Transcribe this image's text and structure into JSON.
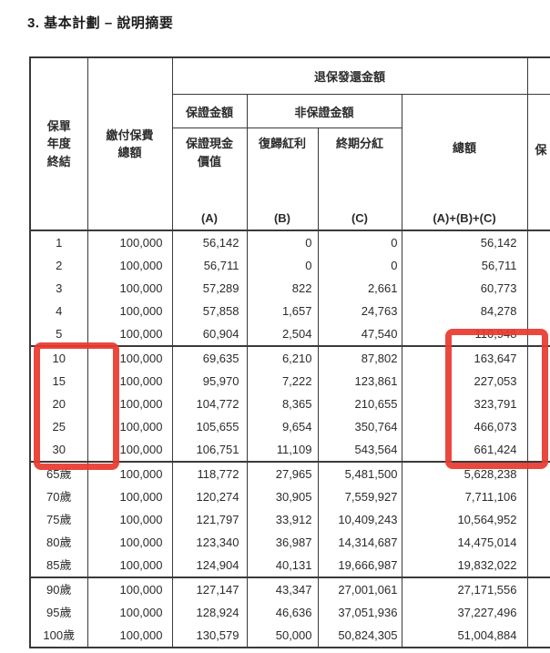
{
  "page": {
    "title": "3. 基本計劃 – 說明摘要"
  },
  "table": {
    "headers": {
      "policy_year": "保單\n年度\n終結",
      "total_premiums": "繳付保費\n總額",
      "surrender_group": "退保發還金額",
      "guaranteed_group": "保證金額",
      "non_guaranteed_group": "非保證金額",
      "guaranteed_cash_value": "保證現金\n價值",
      "guaranteed_cash_value_tag": "(A)",
      "reversionary_bonus": "復歸紅利",
      "reversionary_bonus_tag": "(B)",
      "terminal_dividend": "終期分紅",
      "terminal_dividend_tag": "(C)",
      "total": "總額",
      "total_tag": "(A)+(B)+(C)",
      "cutoff_partial": "保"
    },
    "groups": [
      {
        "name": "policy-years-1-5",
        "rows": [
          [
            "1",
            "100,000",
            "56,142",
            "0",
            "0",
            "56,142"
          ],
          [
            "2",
            "100,000",
            "56,711",
            "0",
            "0",
            "56,711"
          ],
          [
            "3",
            "100,000",
            "57,289",
            "822",
            "2,661",
            "60,773"
          ],
          [
            "4",
            "100,000",
            "57,858",
            "1,657",
            "24,763",
            "84,278"
          ],
          [
            "5",
            "100,000",
            "60,904",
            "2,504",
            "47,540",
            "110,948"
          ]
        ]
      },
      {
        "name": "policy-years-10-30",
        "rows": [
          [
            "10",
            "100,000",
            "69,635",
            "6,210",
            "87,802",
            "163,647"
          ],
          [
            "15",
            "100,000",
            "95,970",
            "7,222",
            "123,861",
            "227,053"
          ],
          [
            "20",
            "100,000",
            "104,772",
            "8,365",
            "210,655",
            "323,791"
          ],
          [
            "25",
            "100,000",
            "105,655",
            "9,654",
            "350,764",
            "466,073"
          ],
          [
            "30",
            "100,000",
            "106,751",
            "11,109",
            "543,564",
            "661,424"
          ]
        ]
      },
      {
        "name": "ages-65-85",
        "rows": [
          [
            "65歲",
            "100,000",
            "118,772",
            "27,965",
            "5,481,500",
            "5,628,238"
          ],
          [
            "70歲",
            "100,000",
            "120,274",
            "30,905",
            "7,559,927",
            "7,711,106"
          ],
          [
            "75歲",
            "100,000",
            "121,797",
            "33,912",
            "10,409,243",
            "10,564,952"
          ],
          [
            "80歲",
            "100,000",
            "123,340",
            "36,987",
            "14,314,687",
            "14,475,014"
          ],
          [
            "85歲",
            "100,000",
            "124,904",
            "40,131",
            "19,666,987",
            "19,832,022"
          ]
        ]
      },
      {
        "name": "ages-90-100",
        "rows": [
          [
            "90歲",
            "100,000",
            "127,147",
            "43,347",
            "27,001,061",
            "27,171,556"
          ],
          [
            "95歲",
            "100,000",
            "128,924",
            "46,636",
            "37,051,936",
            "37,227,496"
          ],
          [
            "100歲",
            "100,000",
            "130,579",
            "50,000",
            "50,824,305",
            "51,004,884"
          ]
        ]
      }
    ]
  },
  "annotations": {
    "highlight_color": "#e83a30",
    "highlighted_regions": [
      "policy-years-10-30-labels",
      "surrender-totals-10-30"
    ]
  }
}
